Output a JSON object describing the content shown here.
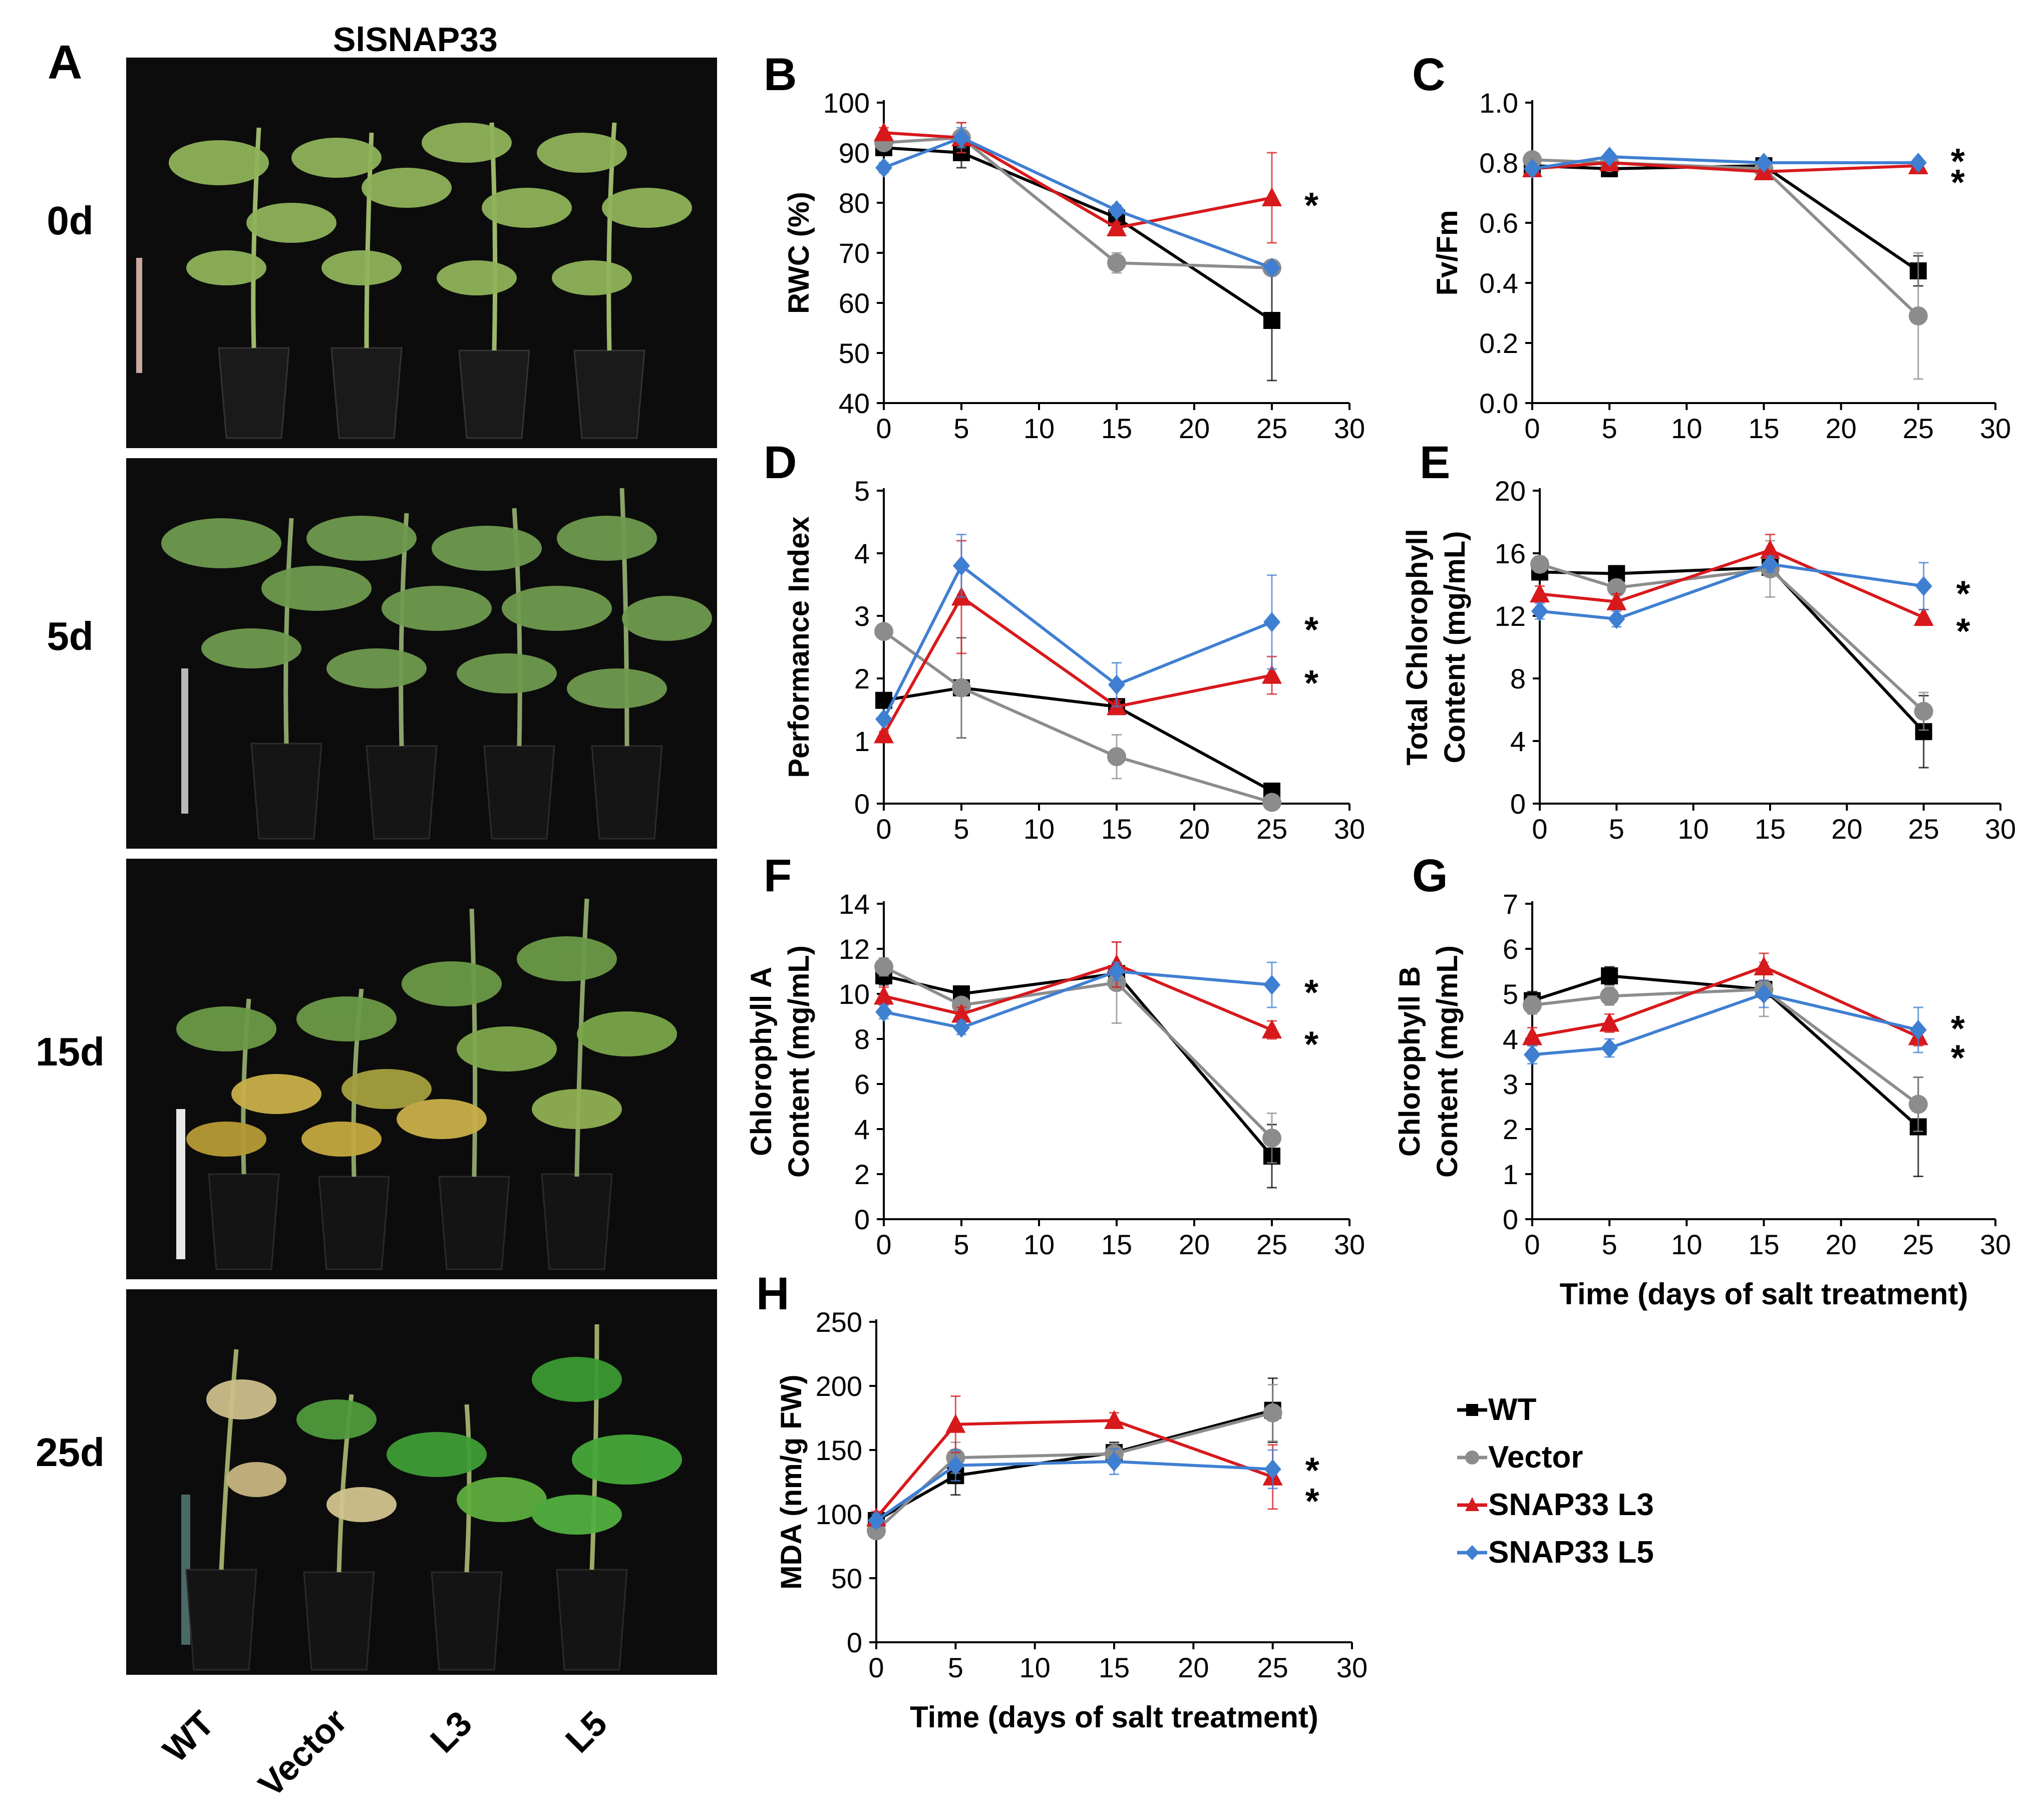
{
  "panel_a": {
    "label": "A",
    "title": "SlSNAP33",
    "days": [
      "0d",
      "5d",
      "15d",
      "25d"
    ],
    "genotypes": [
      "WT",
      "Vector",
      "L3",
      "L5"
    ]
  },
  "legend": [
    {
      "name": "WT",
      "color": "#000000",
      "marker": "square"
    },
    {
      "name": "Vector",
      "color": "#8c8c8c",
      "marker": "circle"
    },
    {
      "name": "SNAP33 L3",
      "color": "#d7191c",
      "marker": "triangle"
    },
    {
      "name": "SNAP33 L5",
      "color": "#3f7fd1",
      "marker": "diamond"
    }
  ],
  "chart_data": [
    {
      "id": "B",
      "label": "B",
      "type": "line",
      "ylabel": "RWC (%)",
      "xlabel": "",
      "x": [
        0,
        5,
        15,
        25
      ],
      "xlim": [
        0,
        30
      ],
      "xticks": [
        0,
        5,
        10,
        15,
        20,
        25,
        30
      ],
      "ylim": [
        40,
        100
      ],
      "yticks": [
        40,
        50,
        60,
        70,
        80,
        90,
        100
      ],
      "ytick_labels": [
        "40",
        "50",
        "60",
        "70",
        "80",
        "90",
        "100"
      ],
      "series": [
        {
          "name": "WT",
          "values": [
            91,
            90,
            77,
            56.5
          ],
          "errors": [
            1,
            3,
            1,
            12
          ]
        },
        {
          "name": "Vector",
          "values": [
            92,
            93,
            68,
            67
          ],
          "errors": [
            1,
            3,
            2,
            1
          ]
        },
        {
          "name": "SNAP33 L3",
          "values": [
            94,
            93,
            75,
            81
          ],
          "errors": [
            1,
            3,
            1,
            9
          ]
        },
        {
          "name": "SNAP33 L5",
          "values": [
            87,
            93,
            78.5,
            67
          ],
          "errors": [
            1,
            2,
            1,
            1
          ]
        }
      ],
      "asterisks": [
        {
          "y": 81,
          "label": "*"
        }
      ]
    },
    {
      "id": "C",
      "label": "C",
      "type": "line",
      "ylabel": "Fv/Fm",
      "xlabel": "",
      "x": [
        0,
        5,
        15,
        25
      ],
      "xlim": [
        0,
        30
      ],
      "xticks": [
        0,
        5,
        10,
        15,
        20,
        25,
        30
      ],
      "ylim": [
        0,
        1.0
      ],
      "yticks": [
        0,
        0.2,
        0.4,
        0.6,
        0.8,
        1.0
      ],
      "ytick_labels": [
        "0.0",
        "0.2",
        "0.4",
        "0.6",
        "0.8",
        "1.0"
      ],
      "series": [
        {
          "name": "WT",
          "values": [
            0.79,
            0.78,
            0.79,
            0.44
          ],
          "errors": [
            0.01,
            0.01,
            0.01,
            0.05
          ]
        },
        {
          "name": "Vector",
          "values": [
            0.81,
            0.8,
            0.78,
            0.29
          ],
          "errors": [
            0.01,
            0.01,
            0.01,
            0.21
          ]
        },
        {
          "name": "SNAP33 L3",
          "values": [
            0.78,
            0.8,
            0.77,
            0.79
          ],
          "errors": [
            0.01,
            0.01,
            0.01,
            0.01
          ]
        },
        {
          "name": "SNAP33 L5",
          "values": [
            0.78,
            0.82,
            0.8,
            0.8
          ],
          "errors": [
            0.01,
            0.01,
            0.01,
            0.01
          ]
        }
      ],
      "asterisks": [
        {
          "y": 0.83,
          "label": "*"
        },
        {
          "y": 0.76,
          "label": "*"
        }
      ]
    },
    {
      "id": "D",
      "label": "D",
      "type": "line",
      "ylabel": "Performance Index",
      "xlabel": "",
      "x": [
        0,
        5,
        15,
        25
      ],
      "xlim": [
        0,
        30
      ],
      "xticks": [
        0,
        5,
        10,
        15,
        20,
        25,
        30
      ],
      "ylim": [
        0,
        5
      ],
      "yticks": [
        0,
        1,
        2,
        3,
        4,
        5
      ],
      "ytick_labels": [
        "0",
        "1",
        "2",
        "3",
        "4",
        "5"
      ],
      "series": [
        {
          "name": "WT",
          "values": [
            1.65,
            1.85,
            1.55,
            0.2
          ],
          "errors": [
            0.05,
            0.8,
            0.1,
            0.05
          ]
        },
        {
          "name": "Vector",
          "values": [
            2.75,
            1.85,
            0.75,
            0.02
          ],
          "errors": [
            0.05,
            0.8,
            0.35,
            0.02
          ]
        },
        {
          "name": "SNAP33 L3",
          "values": [
            1.1,
            3.3,
            1.55,
            2.05
          ],
          "errors": [
            0.05,
            0.9,
            0.1,
            0.3
          ]
        },
        {
          "name": "SNAP33 L5",
          "values": [
            1.35,
            3.8,
            1.9,
            2.9
          ],
          "errors": [
            0.05,
            0.5,
            0.35,
            0.75
          ]
        }
      ],
      "asterisks": [
        {
          "y": 2.9,
          "label": "*"
        },
        {
          "y": 2.05,
          "label": "*"
        }
      ]
    },
    {
      "id": "E",
      "label": "E",
      "type": "line",
      "ylabel": "Total Chlorophyll Content (mg/mL)",
      "ylabel_lines": [
        "Total Chlorophyll",
        "Content (mg/mL)"
      ],
      "xlabel": "",
      "x": [
        0,
        5,
        15,
        25
      ],
      "xlim": [
        0,
        30
      ],
      "xticks": [
        0,
        5,
        10,
        15,
        20,
        25,
        30
      ],
      "ylim": [
        0,
        20
      ],
      "yticks": [
        0,
        4,
        8,
        12,
        16,
        20
      ],
      "ytick_labels": [
        "0",
        "4",
        "8",
        "12",
        "16",
        "20"
      ],
      "series": [
        {
          "name": "WT",
          "values": [
            14.8,
            14.7,
            15.1,
            4.6
          ],
          "errors": [
            0.5,
            0.5,
            0.5,
            2.3
          ]
        },
        {
          "name": "Vector",
          "values": [
            15.3,
            13.8,
            15.0,
            5.9
          ],
          "errors": [
            0.5,
            0.5,
            1.8,
            1.2
          ]
        },
        {
          "name": "SNAP33 L3",
          "values": [
            13.4,
            12.9,
            16.2,
            11.9
          ],
          "errors": [
            0.5,
            0.5,
            1.0,
            0.5
          ]
        },
        {
          "name": "SNAP33 L5",
          "values": [
            12.3,
            11.8,
            15.3,
            13.9
          ],
          "errors": [
            0.5,
            0.5,
            0.5,
            1.5
          ]
        }
      ],
      "asterisks": [
        {
          "y": 13.9,
          "label": "*"
        },
        {
          "y": 11.5,
          "label": "*"
        }
      ]
    },
    {
      "id": "F",
      "label": "F",
      "type": "line",
      "ylabel": "Chlorophyll A Content (mg/mL)",
      "ylabel_lines": [
        "Chlorophyll A",
        "Content (mg/mL)"
      ],
      "xlabel": "",
      "x": [
        0,
        5,
        15,
        25
      ],
      "xlim": [
        0,
        30
      ],
      "xticks": [
        0,
        5,
        10,
        15,
        20,
        25,
        30
      ],
      "ylim": [
        0,
        14
      ],
      "yticks": [
        0,
        2,
        4,
        6,
        8,
        10,
        12,
        14
      ],
      "ytick_labels": [
        "0",
        "2",
        "4",
        "6",
        "8",
        "10",
        "12",
        "14"
      ],
      "series": [
        {
          "name": "WT",
          "values": [
            10.8,
            10.0,
            10.9,
            2.8
          ],
          "errors": [
            0.4,
            0.3,
            0.4,
            1.4
          ]
        },
        {
          "name": "Vector",
          "values": [
            11.2,
            9.5,
            10.5,
            3.6
          ],
          "errors": [
            0.4,
            0.3,
            1.8,
            1.1
          ]
        },
        {
          "name": "SNAP33 L3",
          "values": [
            9.9,
            9.1,
            11.3,
            8.4
          ],
          "errors": [
            0.4,
            0.3,
            1.0,
            0.4
          ]
        },
        {
          "name": "SNAP33 L5",
          "values": [
            9.2,
            8.5,
            11.0,
            10.4
          ],
          "errors": [
            0.3,
            0.3,
            0.4,
            1.0
          ]
        }
      ],
      "asterisks": [
        {
          "y": 10.4,
          "label": "*"
        },
        {
          "y": 8.1,
          "label": "*"
        }
      ]
    },
    {
      "id": "G",
      "label": "G",
      "type": "line",
      "ylabel": "Chlorophyll B Content (mg/mL)",
      "ylabel_lines": [
        "Chlorophyll B",
        "Content (mg/mL)"
      ],
      "xlabel": "Time (days of salt treatment)",
      "x": [
        0,
        5,
        15,
        25
      ],
      "xlim": [
        0,
        30
      ],
      "xticks": [
        0,
        5,
        10,
        15,
        20,
        25,
        30
      ],
      "ylim": [
        0,
        7
      ],
      "yticks": [
        0,
        1,
        2,
        3,
        4,
        5,
        6,
        7
      ],
      "ytick_labels": [
        "0",
        "1",
        "2",
        "3",
        "4",
        "5",
        "6",
        "7"
      ],
      "series": [
        {
          "name": "WT",
          "values": [
            4.85,
            5.4,
            5.1,
            2.05
          ],
          "errors": [
            0.2,
            0.2,
            0.2,
            1.1
          ]
        },
        {
          "name": "Vector",
          "values": [
            4.75,
            4.95,
            5.1,
            2.55
          ],
          "errors": [
            0.2,
            0.2,
            0.6,
            0.6
          ]
        },
        {
          "name": "SNAP33 L3",
          "values": [
            4.05,
            4.35,
            5.6,
            4.05
          ],
          "errors": [
            0.2,
            0.2,
            0.3,
            0.2
          ]
        },
        {
          "name": "SNAP33 L5",
          "values": [
            3.65,
            3.8,
            5.0,
            4.2
          ],
          "errors": [
            0.2,
            0.2,
            0.3,
            0.5
          ]
        }
      ],
      "asterisks": [
        {
          "y": 4.4,
          "label": "*"
        },
        {
          "y": 3.75,
          "label": "*"
        }
      ]
    },
    {
      "id": "H",
      "label": "H",
      "type": "line",
      "ylabel": "MDA (nm/g FW)",
      "xlabel": "Time (days of salt treatment)",
      "x": [
        0,
        5,
        15,
        25
      ],
      "xlim": [
        0,
        30
      ],
      "xticks": [
        0,
        5,
        10,
        15,
        20,
        25,
        30
      ],
      "ylim": [
        0,
        250
      ],
      "yticks": [
        0,
        50,
        100,
        150,
        200,
        250
      ],
      "ytick_labels": [
        "0",
        "50",
        "100",
        "150",
        "200",
        "250"
      ],
      "series": [
        {
          "name": "WT",
          "values": [
            95,
            130,
            148,
            181
          ],
          "errors": [
            5,
            15,
            8,
            25
          ]
        },
        {
          "name": "Vector",
          "values": [
            87,
            144,
            147,
            179
          ],
          "errors": [
            5,
            12,
            8,
            22
          ]
        },
        {
          "name": "SNAP33 L3",
          "values": [
            97,
            170,
            173,
            129
          ],
          "errors": [
            5,
            22,
            6,
            25
          ]
        },
        {
          "name": "SNAP33 L5",
          "values": [
            95,
            138,
            141,
            135
          ],
          "errors": [
            5,
            12,
            10,
            15
          ]
        }
      ],
      "asterisks": [
        {
          "y": 140,
          "label": "*"
        },
        {
          "y": 116,
          "label": "*"
        }
      ]
    }
  ]
}
